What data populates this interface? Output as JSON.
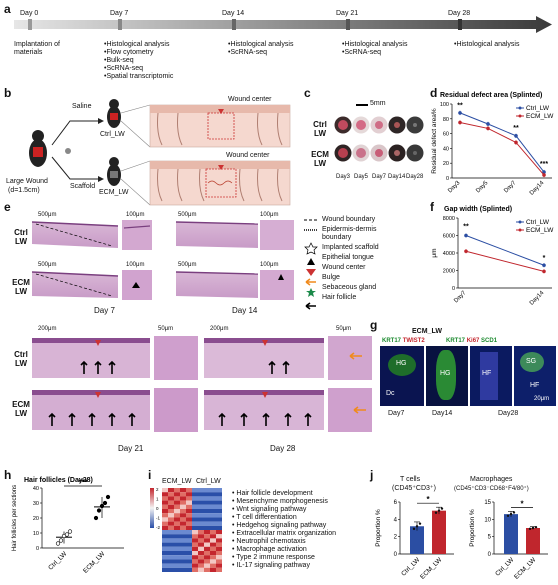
{
  "panels": {
    "a": "a",
    "b": "b",
    "c": "c",
    "d": "d",
    "e": "e",
    "f": "f",
    "g": "g",
    "h": "h",
    "i": "i",
    "j": "j"
  },
  "timeline": {
    "days": [
      "Day 0",
      "Day 7",
      "Day 14",
      "Day 21",
      "Day 28"
    ],
    "day0_note": [
      "Implantation of",
      "materials"
    ],
    "day7_items": [
      "•Histological analysis",
      "•Flow cytometry",
      "•Bulk-seq",
      "•ScRNA-seq",
      "•Spatial transcriptomic"
    ],
    "day14_items": [
      "•Histological analysis",
      "•ScRNA-seq"
    ],
    "day21_items": [
      "•Histological analysis",
      "•ScRNA-seq"
    ],
    "day28_items": [
      "•Histological analysis"
    ]
  },
  "panel_b": {
    "saline": "Saline",
    "scaffold": "Scaffold",
    "large_wound": "Large Wound",
    "diameter": "(d=1.5cm)",
    "ctrl": "Ctrl_LW",
    "ecm": "ECM_LW",
    "wound_center_1": "Wound center",
    "wound_center_2": "Wound center"
  },
  "panel_c": {
    "scale": "5mm",
    "row1": [
      "Ctrl",
      "LW"
    ],
    "row2": [
      "ECM",
      "LW"
    ],
    "days": [
      "Day3",
      "Day5",
      "Day7",
      "Day14",
      "Day28"
    ]
  },
  "panel_d": {
    "title": "Residual defect area (Splinted)",
    "ylabel": "Residual defect area%",
    "legend": [
      "Ctrl_LW",
      "ECM_LW"
    ],
    "sig": [
      "**",
      "**",
      "***"
    ],
    "colors": {
      "ctrl": "#2b4ea3",
      "ecm": "#c0262d"
    }
  },
  "panel_f": {
    "title": "Gap width (Splinted)",
    "ylabel": "μm",
    "legend": [
      "Ctrl_LW",
      "ECM_LW"
    ],
    "sig": [
      "**",
      "*"
    ]
  },
  "panel_h": {
    "title": "Hair follicles (Day28)",
    "ylabel": "Hair follicles per sections",
    "sig": "***"
  },
  "panel_j": {
    "tcell_title": "T cells",
    "tcell_sub": "(CD45⁺CD3⁺)",
    "mac_title": "Macrophages",
    "mac_sub": "(CD45⁺CD3⁻CD68⁺F4/80⁺)",
    "ylabel": "Proportion %",
    "sig": "*"
  },
  "chart_data": [
    {
      "type": "line",
      "title": "Residual defect area (Splinted)",
      "ylabel": "Residual defect area%",
      "x": [
        "Day3",
        "Day5",
        "Day7",
        "Day14"
      ],
      "ylim": [
        0,
        100
      ],
      "yticks": [
        0,
        20,
        40,
        60,
        80,
        100
      ],
      "series": [
        {
          "name": "Ctrl_LW",
          "values": [
            88,
            73,
            57,
            8
          ]
        },
        {
          "name": "ECM_LW",
          "values": [
            75,
            67,
            48,
            4
          ]
        }
      ]
    },
    {
      "type": "line",
      "title": "Gap width (Splinted)",
      "ylabel": "μm",
      "x": [
        "Day7",
        "Day14"
      ],
      "ylim": [
        0,
        8000
      ],
      "yticks": [
        0,
        2000,
        4000,
        6000,
        8000
      ],
      "series": [
        {
          "name": "Ctrl_LW",
          "values": [
            6000,
            2600
          ]
        },
        {
          "name": "ECM_LW",
          "values": [
            4200,
            1900
          ]
        }
      ]
    },
    {
      "type": "scatter",
      "title": "Hair follicles (Day28)",
      "ylabel": "Hair follicles per sections",
      "categories": [
        "Ctrl_LW",
        "ECM_LW"
      ],
      "ylim": [
        0,
        40
      ],
      "yticks": [
        0,
        10,
        20,
        30,
        40
      ],
      "series": [
        {
          "name": "Ctrl_LW",
          "values": [
            3,
            5,
            8,
            9,
            11
          ]
        },
        {
          "name": "ECM_LW",
          "values": [
            20,
            25,
            28,
            30,
            34
          ]
        }
      ]
    },
    {
      "type": "bar",
      "title": "T cells",
      "ylabel": "Proportion %",
      "categories": [
        "Ctrl_LW",
        "ECM_LW"
      ],
      "values": [
        3.2,
        5.0
      ],
      "errors": [
        0.5,
        0.4
      ],
      "ylim": [
        0,
        6
      ],
      "yticks": [
        0,
        2,
        4,
        6
      ]
    },
    {
      "type": "bar",
      "title": "Macrophages",
      "ylabel": "Proportion %",
      "categories": [
        "Ctrl_LW",
        "ECM_LW"
      ],
      "values": [
        11.5,
        7.5
      ],
      "errors": [
        0.8,
        0.4
      ],
      "ylim": [
        0,
        15
      ],
      "yticks": [
        0,
        5,
        10,
        15
      ]
    },
    {
      "type": "heatmap",
      "columns": [
        "ECM_LW",
        "Ctrl_LW"
      ],
      "scale": [
        "2",
        "1",
        "0",
        "-1",
        "-2"
      ],
      "pathways": [
        "• Hair follicle development",
        "• Mesenchyme morphogenesis",
        "• Wnt signaling pathway",
        "• T cell differentiation",
        "• Hedgehog signaling pathway",
        "• Extracellular matrix organization",
        "• Neutrophil chemotaxis",
        "• Macrophage activation",
        "• Type 2 immune response",
        "• IL-17 signaling pathway"
      ]
    }
  ],
  "panel_e": {
    "scales_top": [
      "500μm",
      "100μm",
      "500μm",
      "100μm",
      "500μm",
      "100μm",
      "500μm",
      "100μm"
    ],
    "rows_top": [
      [
        "Ctrl",
        "LW"
      ],
      [
        "ECM",
        "LW"
      ]
    ],
    "day7": "Day 7",
    "day14": "Day 14",
    "legend": [
      "Wound boundary",
      "Epidermis-dermis",
      "boundary",
      "Implanted scaffold",
      "Epithelial tongue",
      "Wound center",
      "Bulge",
      "Sebaceous gland",
      "Hair follicle"
    ],
    "scales_bottom": [
      "200μm",
      "50μm",
      "200μm",
      "50μm"
    ],
    "rows_bottom": [
      [
        "Ctrl",
        "LW"
      ],
      [
        "ECM",
        "LW"
      ]
    ],
    "day21": "Day 21",
    "day28": "Day 28"
  },
  "panel_g": {
    "title": "ECM_LW",
    "m1a": "KRT17",
    "m1b": "TWIST2",
    "m2a": "KRT17",
    "m2b": "Ki67",
    "m2c": "SCD1",
    "labels": [
      "HG",
      "Dc",
      "HG",
      "HF",
      "SG",
      "HF"
    ],
    "scale": "20μm",
    "days": [
      "Day7",
      "Day14",
      "Day28"
    ]
  }
}
